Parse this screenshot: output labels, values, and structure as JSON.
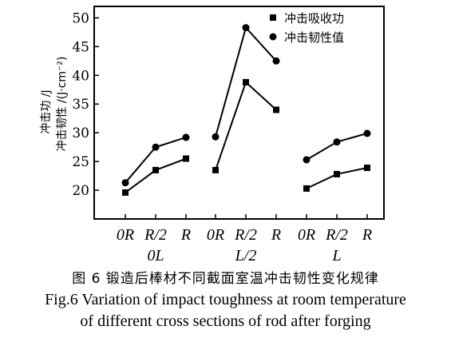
{
  "chart_data": {
    "type": "line",
    "ylabel_line1": "冲击功 /J",
    "ylabel_line2": "冲击韧性 /(J·cm⁻²)",
    "ylim": [
      15,
      52
    ],
    "yticks": [
      20,
      25,
      30,
      35,
      40,
      45,
      50
    ],
    "groups": [
      {
        "name": "0L",
        "categories": [
          "0R",
          "R/2",
          "R"
        ]
      },
      {
        "name": "L/2",
        "categories": [
          "0R",
          "R/2",
          "R"
        ]
      },
      {
        "name": "L",
        "categories": [
          "0R",
          "R/2",
          "R"
        ]
      }
    ],
    "series": [
      {
        "name": "冲击吸收功",
        "marker": "square",
        "values": [
          [
            19.6,
            23.5,
            25.5
          ],
          [
            23.5,
            38.8,
            34.0
          ],
          [
            20.3,
            22.8,
            23.9
          ]
        ]
      },
      {
        "name": "冲击韧性值",
        "marker": "circle",
        "values": [
          [
            21.3,
            27.5,
            29.2
          ],
          [
            29.3,
            48.3,
            42.5
          ],
          [
            25.3,
            28.4,
            29.9
          ]
        ]
      }
    ],
    "legend_position": "top-right",
    "grid": false
  },
  "caption": {
    "zh": "图 6  锻造后棒材不同截面室温冲击韧性变化规律",
    "en_line1": "Fig.6  Variation of impact toughness at room temperature",
    "en_line2": "of different cross sections of rod after forging"
  }
}
